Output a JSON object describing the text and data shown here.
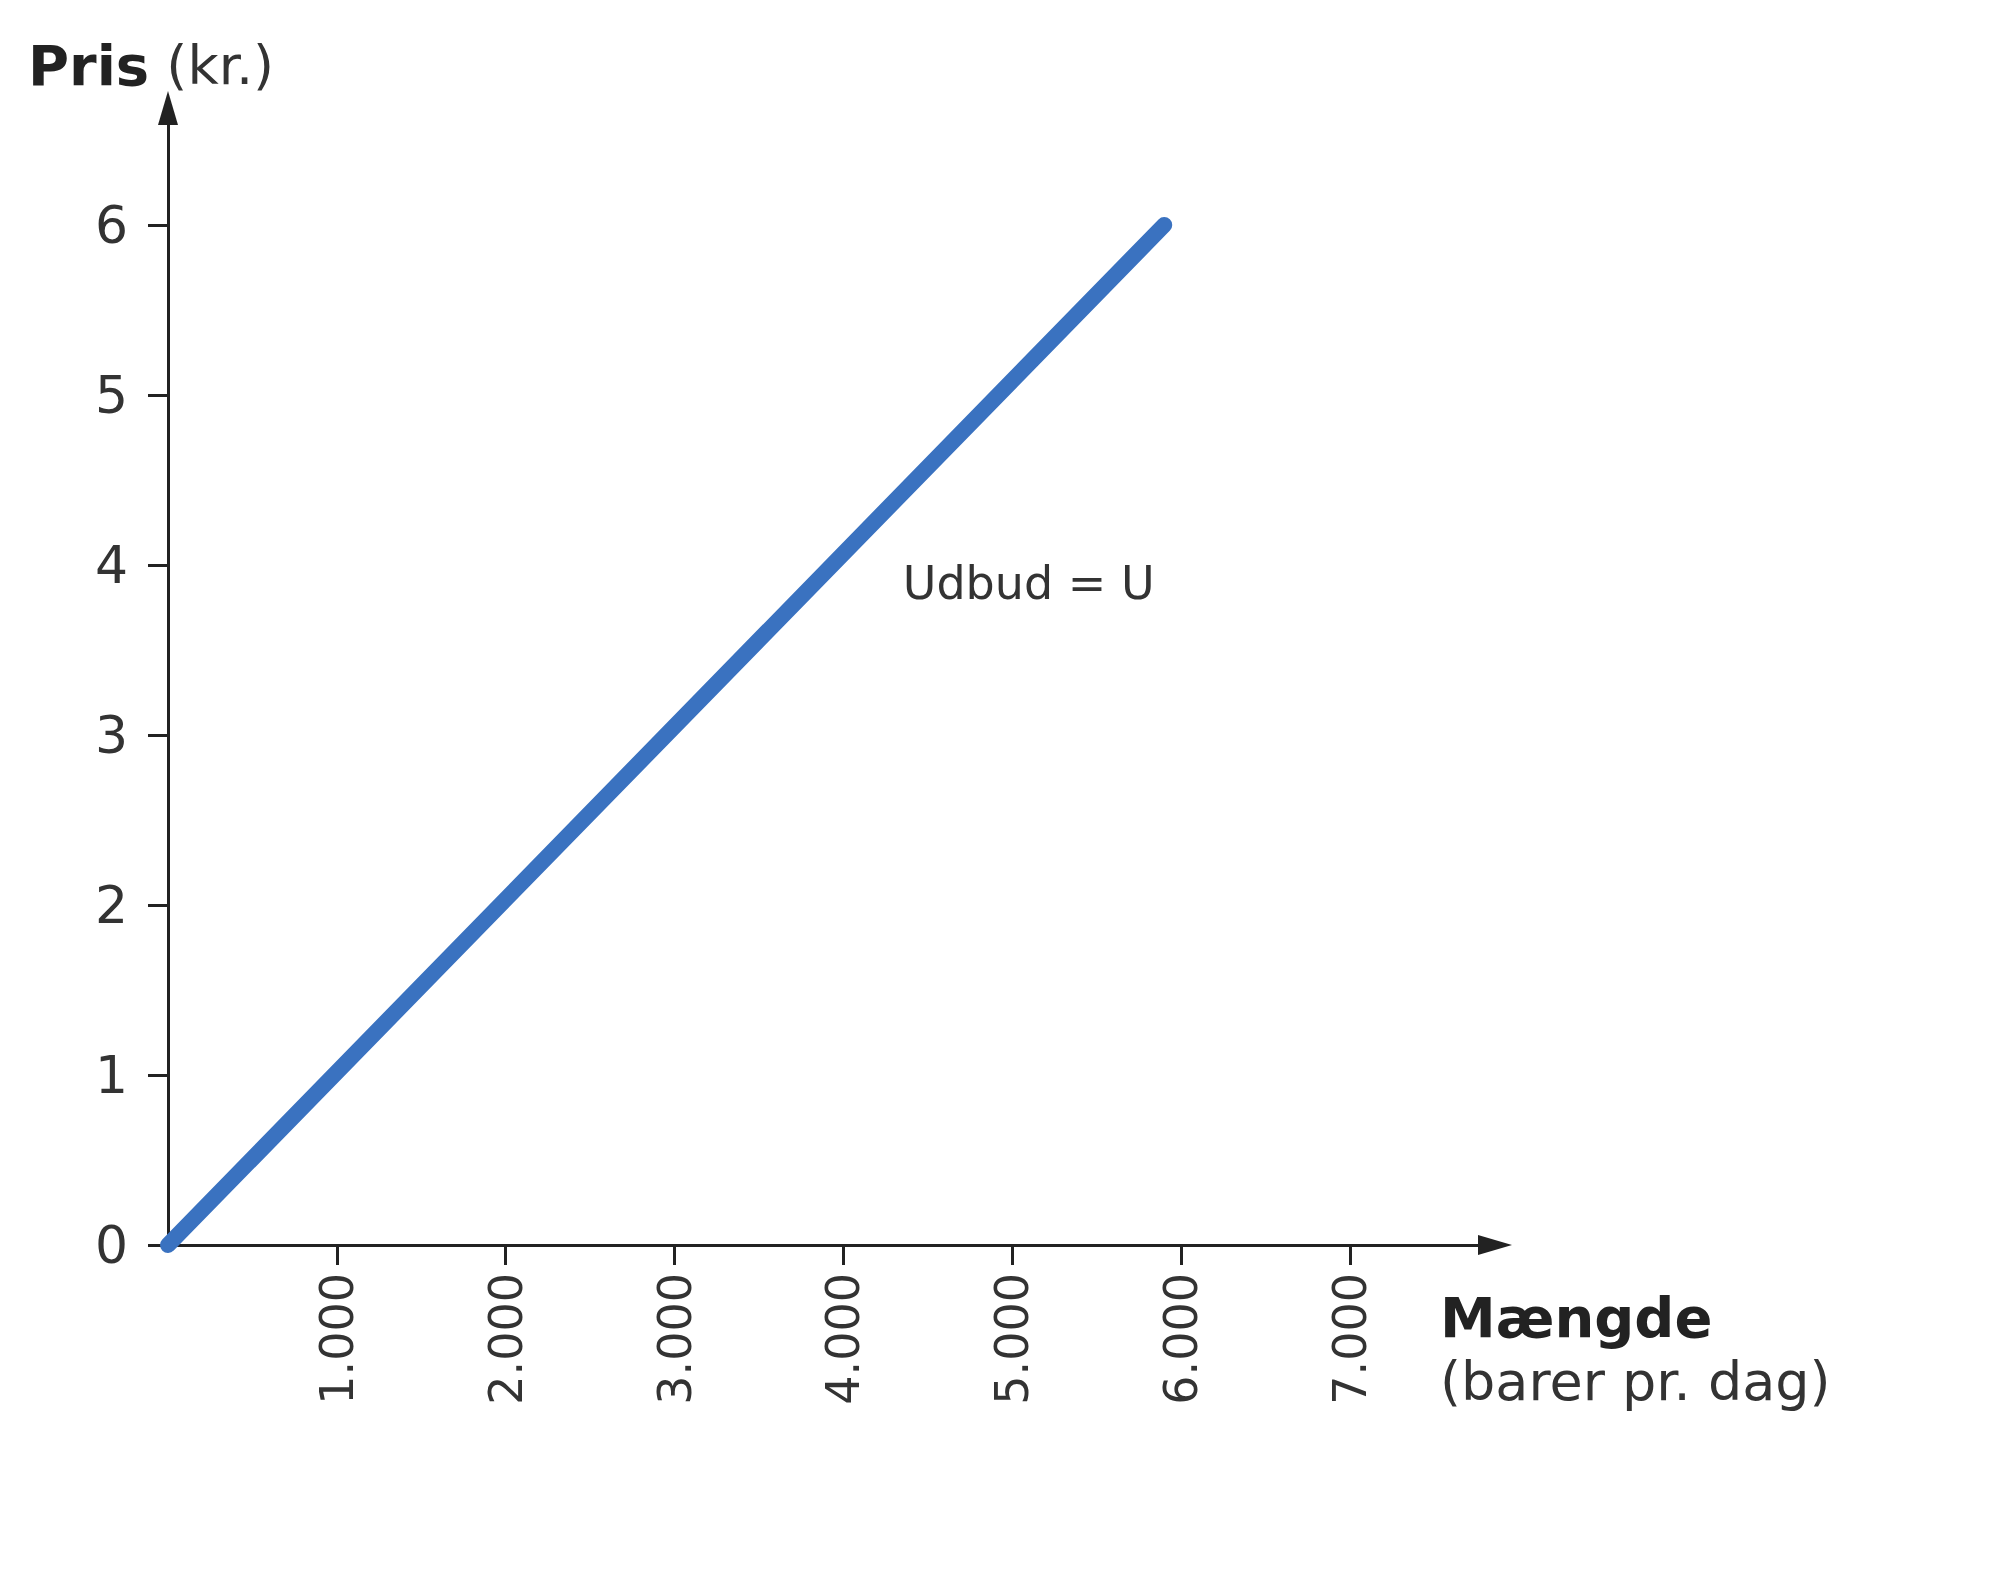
{
  "chart_data": {
    "type": "line",
    "xlabel": "Mængde\n(barer pr. dag)",
    "ylabel": "Pris (kr.)",
    "x": [
      0,
      5900
    ],
    "series": [
      {
        "color": "#3a72c0",
        "values": [
          0,
          6
        ]
      }
    ],
    "xlim": [
      0,
      7770
    ],
    "ylim": [
      0,
      6.6
    ],
    "xticks": [
      {
        "value": 1000,
        "label": "1.000"
      },
      {
        "value": 2000,
        "label": "2.000"
      },
      {
        "value": 3000,
        "label": "3.000"
      },
      {
        "value": 4000,
        "label": "4.000"
      },
      {
        "value": 5000,
        "label": "5.000"
      },
      {
        "value": 6000,
        "label": "6.000"
      },
      {
        "value": 7000,
        "label": "7.000"
      }
    ],
    "yticks": [
      0,
      1,
      2,
      3,
      4,
      5,
      6
    ],
    "annotations": [
      "Udbud = U"
    ],
    "grid": false,
    "line_style": "solid"
  }
}
